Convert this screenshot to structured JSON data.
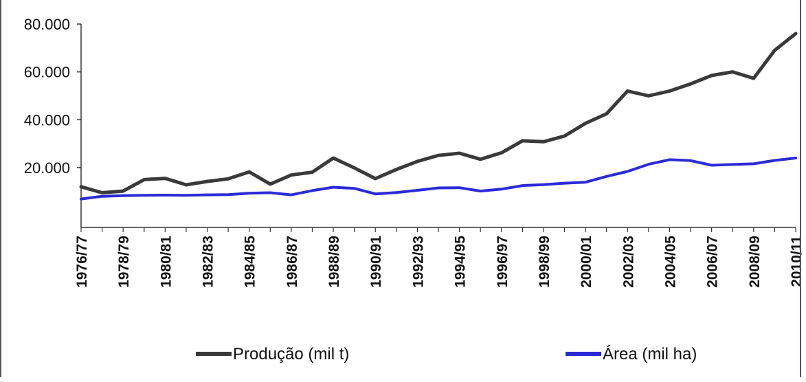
{
  "chart_data": {
    "type": "line",
    "title": "",
    "xlabel": "",
    "ylabel": "",
    "ylim": [
      -5000,
      80000
    ],
    "y_ticks": [
      "80.000",
      "60.000",
      "40.000",
      "20.000"
    ],
    "y_tick_values": [
      80000,
      60000,
      40000,
      20000
    ],
    "x_tick_labels": [
      "1976/77",
      "1978/79",
      "1980/81",
      "1982/83",
      "1984/85",
      "1986/87",
      "1988/89",
      "1990/91",
      "1992/93",
      "1994/95",
      "1996/97",
      "1998/99",
      "2000/01",
      "2002/03",
      "2004/05",
      "2006/07",
      "2008/09",
      "2010/11"
    ],
    "categories": [
      "1976/77",
      "1977/78",
      "1978/79",
      "1979/80",
      "1980/81",
      "1981/82",
      "1982/83",
      "1983/84",
      "1984/85",
      "1985/86",
      "1986/87",
      "1987/88",
      "1988/89",
      "1989/90",
      "1990/91",
      "1991/92",
      "1992/93",
      "1993/94",
      "1994/95",
      "1995/96",
      "1996/97",
      "1997/98",
      "1998/99",
      "1999/00",
      "2000/01",
      "2001/02",
      "2002/03",
      "2003/04",
      "2004/05",
      "2005/06",
      "2006/07",
      "2007/08",
      "2008/09",
      "2009/10",
      "2010/11"
    ],
    "series": [
      {
        "name": "Produção (mil t)",
        "color": "#3a3a3a",
        "values": [
          12000,
          9500,
          10200,
          15000,
          15500,
          12800,
          14200,
          15300,
          18200,
          13100,
          16900,
          18100,
          24000,
          19900,
          15400,
          19200,
          22600,
          25100,
          26000,
          23500,
          26200,
          31200,
          30800,
          33200,
          38500,
          42500,
          52000,
          50000,
          52000,
          55000,
          58500,
          60000,
          57300,
          69000,
          76000
        ]
      },
      {
        "name": "Área (mil ha)",
        "color": "#2b2bd6",
        "values": [
          6900,
          8000,
          8300,
          8400,
          8500,
          8400,
          8600,
          8700,
          9300,
          9500,
          8600,
          10400,
          11800,
          11300,
          9000,
          9600,
          10500,
          11500,
          11600,
          10200,
          11000,
          12500,
          12900,
          13500,
          13900,
          16300,
          18400,
          21400,
          23300,
          22900,
          21000,
          21300,
          21600,
          23000,
          24000
        ]
      }
    ],
    "legend": {
      "position": "bottom",
      "items": [
        "Produção (mil t)",
        "Área (mil ha)"
      ]
    },
    "grid": false
  }
}
